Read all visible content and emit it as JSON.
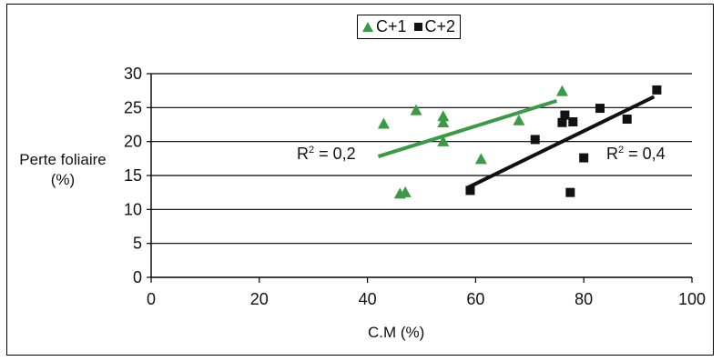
{
  "chart_data": {
    "type": "scatter",
    "xlabel": "C.M (%)",
    "ylabel": "Perte foliaire (%)",
    "xlim": [
      0,
      100
    ],
    "ylim": [
      0,
      30
    ],
    "xticks": [
      "0",
      "20",
      "40",
      "60",
      "80",
      "100"
    ],
    "yticks": [
      "0",
      "5",
      "10",
      "15",
      "20",
      "25",
      "30"
    ],
    "grid": "horizontal",
    "legend_position": "top-center",
    "series": [
      {
        "name": "C+1",
        "color": "#3a9a45",
        "marker": "triangle",
        "points": [
          {
            "x": 43,
            "y": 22.7
          },
          {
            "x": 46,
            "y": 12.4
          },
          {
            "x": 47,
            "y": 12.6
          },
          {
            "x": 49,
            "y": 24.7
          },
          {
            "x": 54,
            "y": 23.8
          },
          {
            "x": 54,
            "y": 22.9
          },
          {
            "x": 54,
            "y": 20.1
          },
          {
            "x": 61,
            "y": 17.5
          },
          {
            "x": 68,
            "y": 23.2
          },
          {
            "x": 76,
            "y": 27.5
          }
        ],
        "trendline": {
          "x": [
            42,
            75
          ],
          "y": [
            17.8,
            26.0
          ]
        },
        "r2_label": {
          "prefix": "R",
          "exp": "2",
          "suffix": " = 0,2"
        }
      },
      {
        "name": "C+2",
        "color": "#111111",
        "marker": "square",
        "points": [
          {
            "x": 59,
            "y": 12.8
          },
          {
            "x": 71,
            "y": 20.3
          },
          {
            "x": 76,
            "y": 22.8
          },
          {
            "x": 76.5,
            "y": 23.9
          },
          {
            "x": 77.5,
            "y": 12.5
          },
          {
            "x": 78,
            "y": 22.9
          },
          {
            "x": 80,
            "y": 17.6
          },
          {
            "x": 83,
            "y": 24.9
          },
          {
            "x": 88,
            "y": 23.3
          },
          {
            "x": 93.5,
            "y": 27.6
          }
        ],
        "trendline": {
          "x": [
            58.5,
            93
          ],
          "y": [
            13.2,
            26.6
          ]
        },
        "r2_label": {
          "prefix": "R",
          "exp": "2",
          "suffix": " = 0,4"
        }
      }
    ]
  }
}
